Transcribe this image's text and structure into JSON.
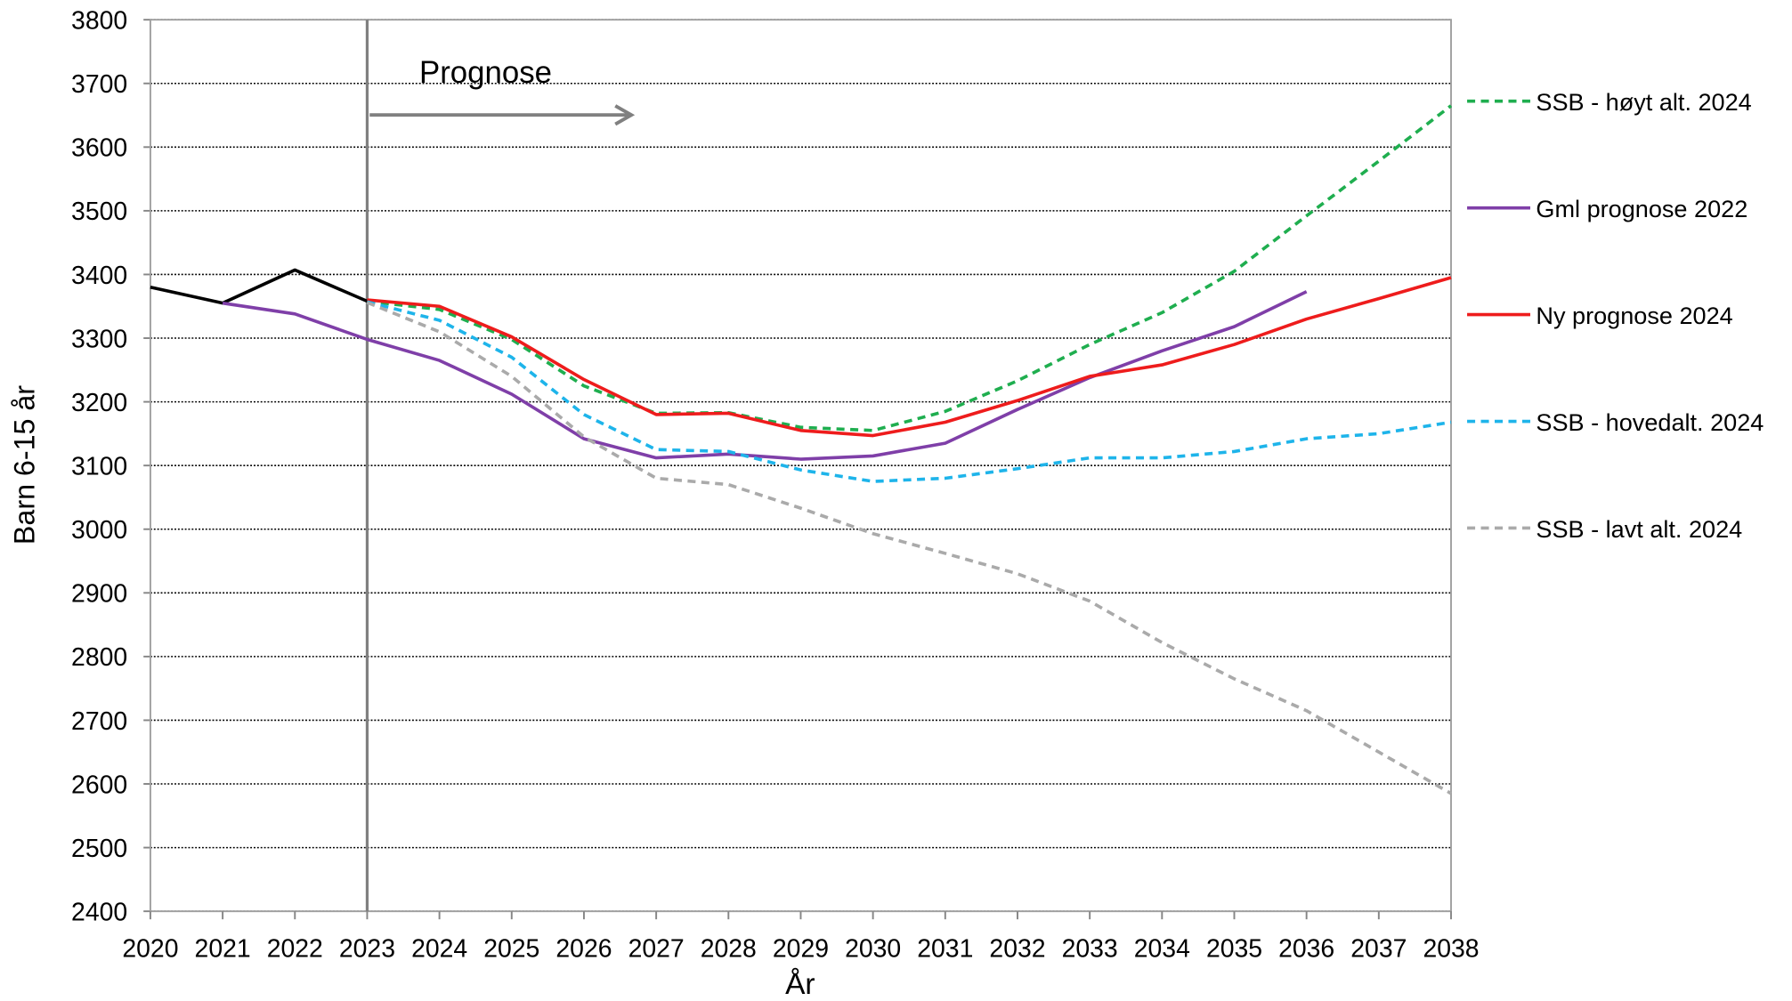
{
  "chart_data": {
    "type": "line",
    "y_label": "Barn 6-15 år",
    "x_label": "År",
    "annotation": "Prognose",
    "prognosis_start": 2023,
    "x": [
      2020,
      2021,
      2022,
      2023,
      2024,
      2025,
      2026,
      2027,
      2028,
      2029,
      2030,
      2031,
      2032,
      2033,
      2034,
      2035,
      2036,
      2037,
      2038
    ],
    "xlim": [
      2020,
      2038
    ],
    "xticks": [
      2020,
      2021,
      2022,
      2023,
      2024,
      2025,
      2026,
      2027,
      2028,
      2029,
      2030,
      2031,
      2032,
      2033,
      2034,
      2035,
      2036,
      2037,
      2038
    ],
    "ylim": [
      2400,
      3800
    ],
    "yticks": [
      2400,
      2500,
      2600,
      2700,
      2800,
      2900,
      3000,
      3100,
      3200,
      3300,
      3400,
      3500,
      3600,
      3700,
      3800
    ],
    "grid": true,
    "legend": "right",
    "series": [
      {
        "color": "#000000",
        "dash": false,
        "values": [
          3380,
          3355,
          3407,
          3358,
          null,
          null,
          null,
          null,
          null,
          null,
          null,
          null,
          null,
          null,
          null,
          null,
          null,
          null,
          null
        ]
      },
      {
        "name": "SSB - høyt alt. 2024",
        "color": "#1fae4f",
        "dash": true,
        "values": [
          null,
          null,
          null,
          3358,
          3345,
          3298,
          3225,
          3182,
          3183,
          3160,
          3155,
          3185,
          3233,
          3290,
          3340,
          3405,
          3492,
          3578,
          3665
        ]
      },
      {
        "name": "Gml prognose 2022",
        "color": "#7f3fa8",
        "dash": false,
        "values": [
          null,
          3355,
          3338,
          3298,
          3265,
          3212,
          3142,
          3112,
          3118,
          3110,
          3115,
          3135,
          3188,
          3238,
          3280,
          3318,
          3373,
          null,
          null
        ]
      },
      {
        "name": "Ny prognose 2024",
        "color": "#ee1c1c",
        "dash": false,
        "values": [
          null,
          null,
          null,
          3360,
          3350,
          3302,
          3235,
          3180,
          3182,
          3155,
          3147,
          3168,
          3202,
          3240,
          3258,
          3290,
          3330,
          3362,
          3395
        ]
      },
      {
        "name": "SSB - hovedalt. 2024",
        "color": "#1eb4ea",
        "dash": true,
        "values": [
          null,
          null,
          null,
          3357,
          3328,
          3270,
          3180,
          3125,
          3122,
          3093,
          3075,
          3080,
          3095,
          3112,
          3112,
          3122,
          3142,
          3150,
          3168
        ]
      },
      {
        "name": "SSB - lavt alt. 2024",
        "color": "#aaaaaa",
        "dash": true,
        "values": [
          null,
          null,
          null,
          3356,
          3310,
          3240,
          3145,
          3080,
          3070,
          3033,
          2993,
          2962,
          2930,
          2887,
          2822,
          2765,
          2715,
          2650,
          2585
        ]
      }
    ]
  }
}
